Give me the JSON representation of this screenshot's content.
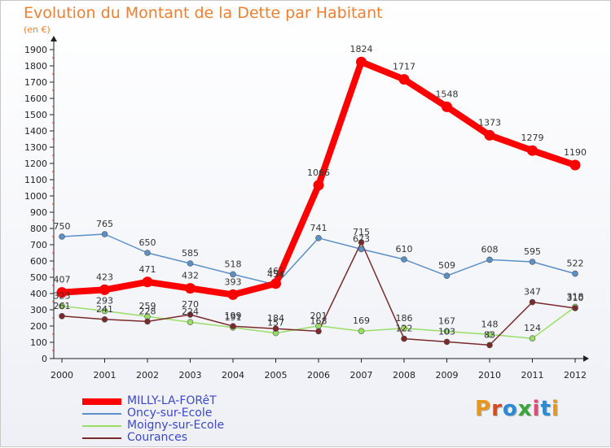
{
  "title": "Evolution du Montant de la Dette par Habitant",
  "unit": "(en €)",
  "logo": "Proxiti",
  "logo_colors": [
    "#e8961e",
    "#d94a1e",
    "#2a8ad4",
    "#3aa63a",
    "#e04a7a",
    "#2a8ad4",
    "#e8961e"
  ],
  "chart_data": {
    "type": "line",
    "x": [
      "2000",
      "2001",
      "2002",
      "2003",
      "2004",
      "2005",
      "2006",
      "2007",
      "2008",
      "2009",
      "2010",
      "2011",
      "2012"
    ],
    "ylim": [
      0,
      1900
    ],
    "yticks": [
      0,
      100,
      200,
      300,
      400,
      500,
      600,
      700,
      800,
      900,
      1000,
      1100,
      1200,
      1300,
      1400,
      1500,
      1600,
      1700,
      1800,
      1900
    ],
    "grid": false,
    "legend_position": "bottom-left",
    "series": [
      {
        "name": "MILLY-LA-FORêT",
        "color": "#ff0000",
        "values": [
          407,
          423,
          471,
          432,
          393,
          461,
          1066,
          1824,
          1717,
          1548,
          1373,
          1279,
          1190
        ]
      },
      {
        "name": "Oncy-sur-Ecole",
        "color": "#5a8fc8",
        "values": [
          750,
          765,
          650,
          585,
          518,
          454,
          741,
          673,
          610,
          509,
          608,
          595,
          522
        ]
      },
      {
        "name": "Moigny-sur-Ecole",
        "color": "#99dd66",
        "values": [
          323,
          293,
          259,
          224,
          191,
          157,
          201,
          169,
          186,
          167,
          148,
          124,
          318
        ]
      },
      {
        "name": "Courances",
        "color": "#7a2a2a",
        "values": [
          261,
          241,
          228,
          270,
          199,
          184,
          168,
          715,
          122,
          103,
          83,
          347,
          310
        ]
      }
    ]
  }
}
